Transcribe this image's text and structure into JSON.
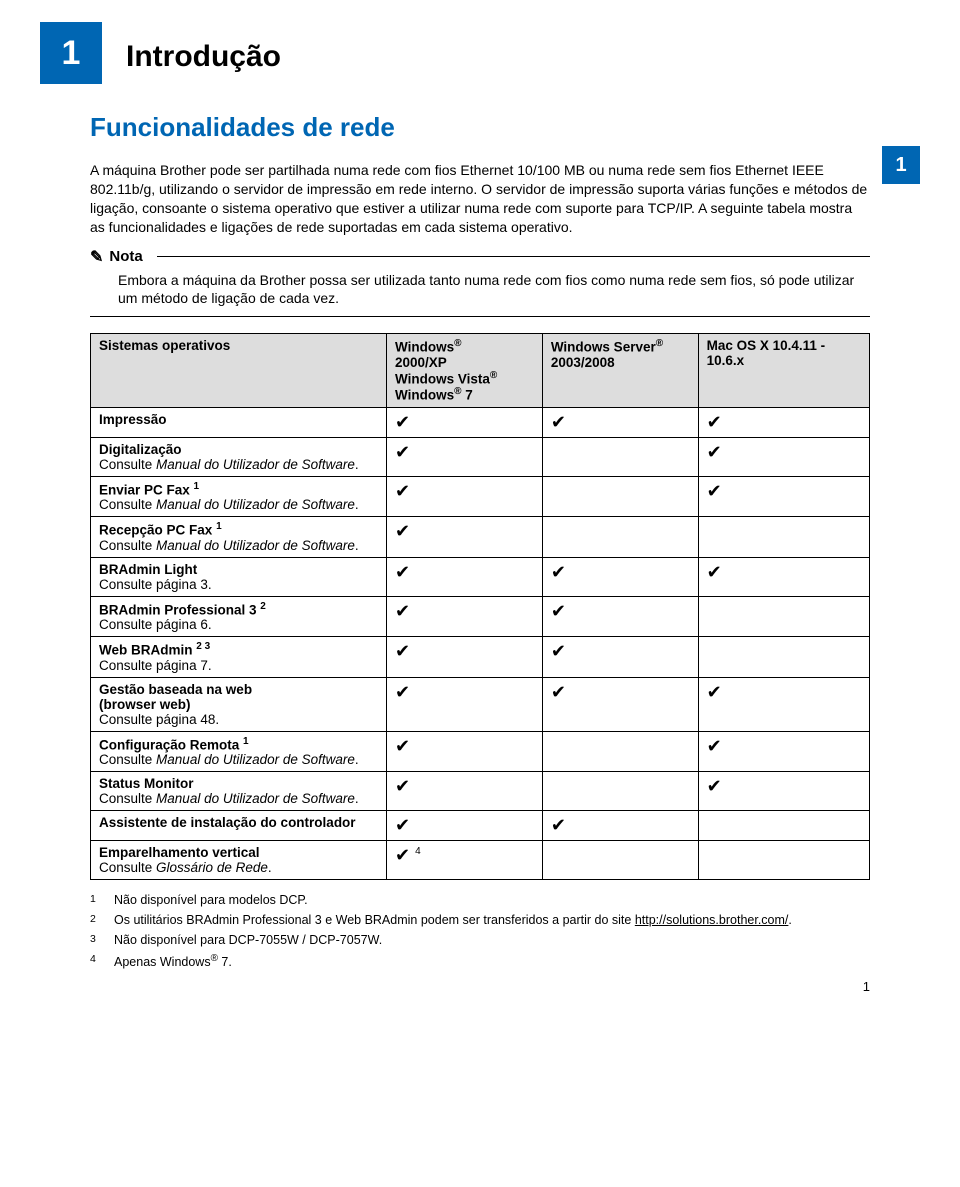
{
  "chapter": {
    "number": "1",
    "title": "Introdução",
    "side_tab": "1"
  },
  "section_title": "Funcionalidades de rede",
  "intro_para": "A máquina Brother pode ser partilhada numa rede com fios Ethernet 10/100 MB ou numa rede sem fios Ethernet IEEE 802.11b/g, utilizando o servidor de impressão em rede interno. O servidor de impressão suporta várias funções e métodos de ligação, consoante o sistema operativo que estiver a utilizar numa rede com suporte para TCP/IP. A seguinte tabela mostra as funcionalidades e ligações de rede suportadas em cada sistema operativo.",
  "note": {
    "label": "Nota",
    "body": "Embora a máquina da Brother possa ser utilizada tanto numa rede com fios como numa rede sem fios, só pode utilizar um método de ligação de cada vez."
  },
  "table": {
    "headers": {
      "os": "Sistemas operativos",
      "col1_lines": [
        "Windows®",
        "2000/XP",
        "Windows Vista®",
        "Windows® 7"
      ],
      "col2_lines": [
        "Windows Server®",
        "2003/2008"
      ],
      "col3_lines": [
        "Mac OS X 10.4.11 -",
        "10.6.x"
      ]
    },
    "rows": [
      {
        "feature": "Impressão",
        "c1": "✔",
        "c2": "✔",
        "c3": "✔"
      },
      {
        "feature": "Digitalização",
        "sub": "Consulte Manual do Utilizador de Software.",
        "sub_italic": true,
        "c1": "✔",
        "c2": "",
        "c3": "✔"
      },
      {
        "feature": "Enviar PC Fax ",
        "sup": "1",
        "sub": "Consulte Manual do Utilizador de Software.",
        "sub_italic": true,
        "c1": "✔",
        "c2": "",
        "c3": "✔"
      },
      {
        "feature": "Recepção PC Fax ",
        "sup": "1",
        "sub": "Consulte Manual do Utilizador de Software.",
        "sub_italic": true,
        "c1": "✔",
        "c2": "",
        "c3": ""
      },
      {
        "feature": "BRAdmin Light",
        "sub": "Consulte página 3.",
        "c1": "✔",
        "c2": "✔",
        "c3": "✔"
      },
      {
        "feature": "BRAdmin Professional 3 ",
        "sup": "2",
        "sub": "Consulte página 6.",
        "c1": "✔",
        "c2": "✔",
        "c3": ""
      },
      {
        "feature": "Web BRAdmin ",
        "sup": "2 3",
        "sub": "Consulte página 7.",
        "c1": "✔",
        "c2": "✔",
        "c3": ""
      },
      {
        "feature": "Gestão baseada na web\n(browser web)",
        "sub": "Consulte página 48.",
        "c1": "✔",
        "c2": "✔",
        "c3": "✔"
      },
      {
        "feature": "Configuração Remota ",
        "sup": "1",
        "sub": "Consulte Manual do Utilizador de Software.",
        "sub_italic": true,
        "c1": "✔",
        "c2": "",
        "c3": "✔"
      },
      {
        "feature": "Status Monitor",
        "sub": "Consulte Manual do Utilizador de Software.",
        "sub_italic": true,
        "c1": "✔",
        "c2": "",
        "c3": "✔"
      },
      {
        "feature": "Assistente de instalação do controlador",
        "c1": "✔",
        "c2": "✔",
        "c3": ""
      },
      {
        "feature": "Emparelhamento vertical",
        "sub": "Consulte Glossário de Rede.",
        "sub_italic": true,
        "c1": "✔ ",
        "c1_sup": "4",
        "c2": "",
        "c3": ""
      }
    ]
  },
  "footnotes": [
    {
      "n": "1",
      "text_prefix": "Não disponível para modelos DCP."
    },
    {
      "n": "2",
      "text_prefix": "Os utilitários BRAdmin Professional 3 e Web BRAdmin podem ser transferidos a partir do site ",
      "link": "http://solutions.brother.com/",
      "text_suffix": "."
    },
    {
      "n": "3",
      "text_prefix": "Não disponível para DCP-7055W / DCP-7057W."
    },
    {
      "n": "4",
      "text_prefix": "Apenas Windows® 7."
    }
  ],
  "page_number": "1",
  "colors": {
    "brand": "#0066b3",
    "header_bg": "#dddddd"
  }
}
